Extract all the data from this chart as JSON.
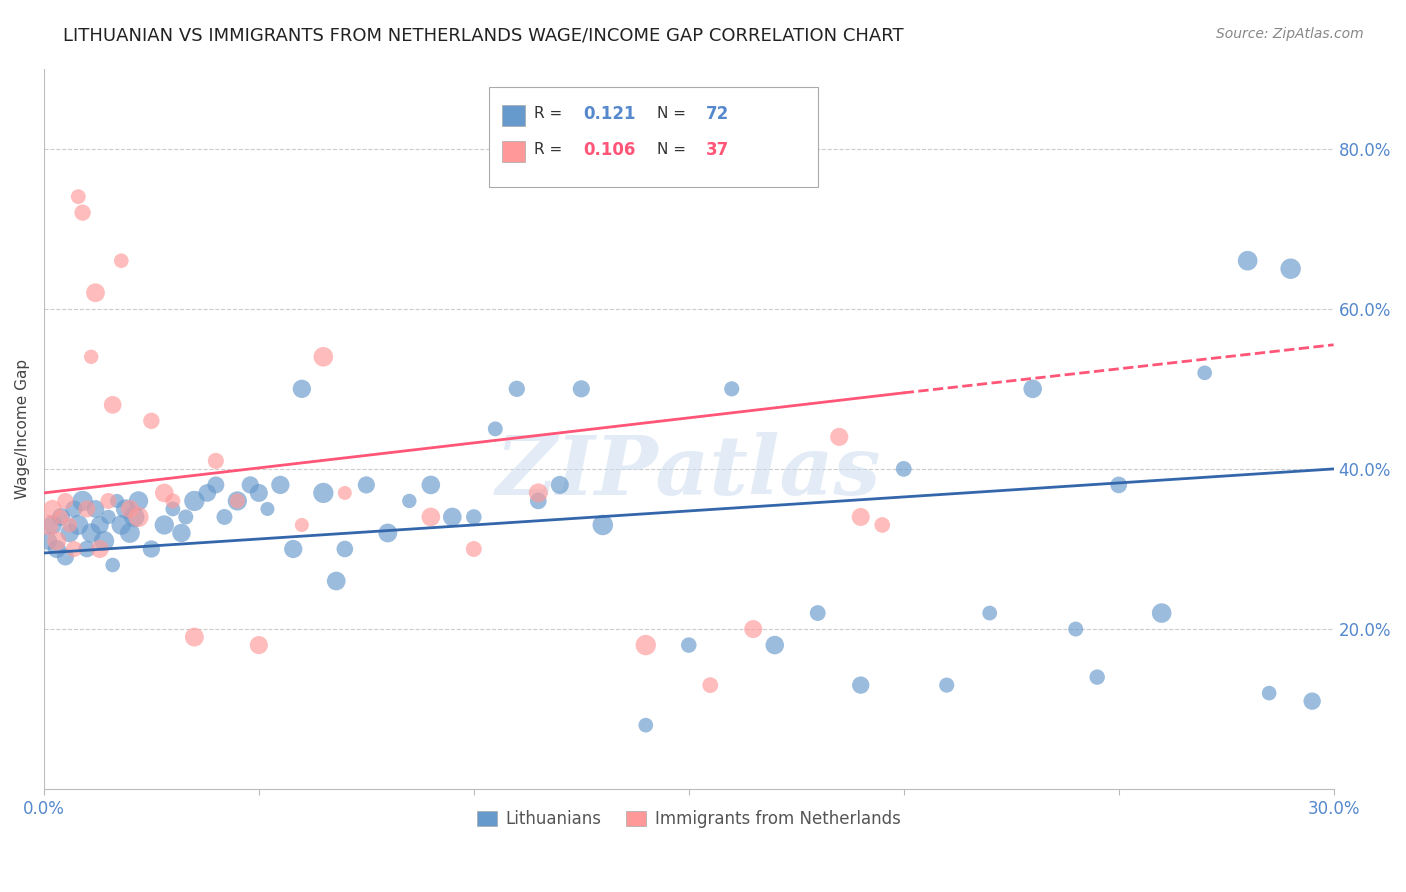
{
  "title": "LITHUANIAN VS IMMIGRANTS FROM NETHERLANDS WAGE/INCOME GAP CORRELATION CHART",
  "source": "Source: ZipAtlas.com",
  "ylabel": "Wage/Income Gap",
  "xlim": [
    0.0,
    0.3
  ],
  "ylim": [
    0.0,
    0.9
  ],
  "yticks": [
    0.2,
    0.4,
    0.6,
    0.8
  ],
  "ytick_labels": [
    "20.0%",
    "40.0%",
    "60.0%",
    "80.0%"
  ],
  "xticks": [
    0.0,
    0.05,
    0.1,
    0.15,
    0.2,
    0.25,
    0.3
  ],
  "xtick_labels": [
    "0.0%",
    "",
    "",
    "",
    "",
    "",
    "30.0%"
  ],
  "blue_color": "#6699CC",
  "pink_color": "#FF9999",
  "trend_blue": "#3366AA",
  "trend_pink": "#FF5577",
  "R_blue": 0.121,
  "N_blue": 72,
  "R_pink": 0.106,
  "N_pink": 37,
  "legend_labels": [
    "Lithuanians",
    "Immigrants from Netherlands"
  ],
  "watermark": "ZIPatlas",
  "blue_x": [
    0.001,
    0.002,
    0.003,
    0.004,
    0.005,
    0.006,
    0.007,
    0.008,
    0.009,
    0.01,
    0.011,
    0.012,
    0.013,
    0.014,
    0.015,
    0.016,
    0.017,
    0.018,
    0.019,
    0.02,
    0.021,
    0.022,
    0.025,
    0.028,
    0.03,
    0.032,
    0.033,
    0.035,
    0.038,
    0.04,
    0.042,
    0.045,
    0.048,
    0.05,
    0.052,
    0.055,
    0.058,
    0.06,
    0.065,
    0.068,
    0.07,
    0.075,
    0.08,
    0.085,
    0.09,
    0.095,
    0.1,
    0.105,
    0.11,
    0.115,
    0.12,
    0.125,
    0.13,
    0.14,
    0.15,
    0.16,
    0.17,
    0.18,
    0.19,
    0.2,
    0.21,
    0.22,
    0.23,
    0.24,
    0.245,
    0.25,
    0.26,
    0.27,
    0.28,
    0.285,
    0.29,
    0.295
  ],
  "blue_y": [
    0.31,
    0.33,
    0.3,
    0.34,
    0.29,
    0.32,
    0.35,
    0.33,
    0.36,
    0.3,
    0.32,
    0.35,
    0.33,
    0.31,
    0.34,
    0.28,
    0.36,
    0.33,
    0.35,
    0.32,
    0.34,
    0.36,
    0.3,
    0.33,
    0.35,
    0.32,
    0.34,
    0.36,
    0.37,
    0.38,
    0.34,
    0.36,
    0.38,
    0.37,
    0.35,
    0.38,
    0.3,
    0.5,
    0.37,
    0.26,
    0.3,
    0.38,
    0.32,
    0.36,
    0.38,
    0.34,
    0.34,
    0.45,
    0.5,
    0.36,
    0.38,
    0.5,
    0.33,
    0.08,
    0.18,
    0.5,
    0.18,
    0.22,
    0.13,
    0.4,
    0.13,
    0.22,
    0.5,
    0.2,
    0.14,
    0.38,
    0.22,
    0.52,
    0.66,
    0.12,
    0.65,
    0.11
  ],
  "pink_x": [
    0.001,
    0.002,
    0.003,
    0.004,
    0.005,
    0.006,
    0.007,
    0.008,
    0.009,
    0.01,
    0.011,
    0.012,
    0.013,
    0.015,
    0.016,
    0.018,
    0.02,
    0.022,
    0.025,
    0.028,
    0.03,
    0.035,
    0.04,
    0.045,
    0.05,
    0.06,
    0.065,
    0.07,
    0.09,
    0.1,
    0.115,
    0.14,
    0.155,
    0.165,
    0.185,
    0.19,
    0.195
  ],
  "pink_y": [
    0.33,
    0.35,
    0.31,
    0.34,
    0.36,
    0.33,
    0.3,
    0.74,
    0.72,
    0.35,
    0.54,
    0.62,
    0.3,
    0.36,
    0.48,
    0.66,
    0.35,
    0.34,
    0.46,
    0.37,
    0.36,
    0.19,
    0.41,
    0.36,
    0.18,
    0.33,
    0.54,
    0.37,
    0.34,
    0.3,
    0.37,
    0.18,
    0.13,
    0.2,
    0.44,
    0.34,
    0.33
  ],
  "grid_color": "#CCCCCC",
  "bg_color": "#FFFFFF",
  "axis_color": "#5588CC",
  "title_fontsize": 13,
  "label_fontsize": 11,
  "tick_fontsize": 12
}
